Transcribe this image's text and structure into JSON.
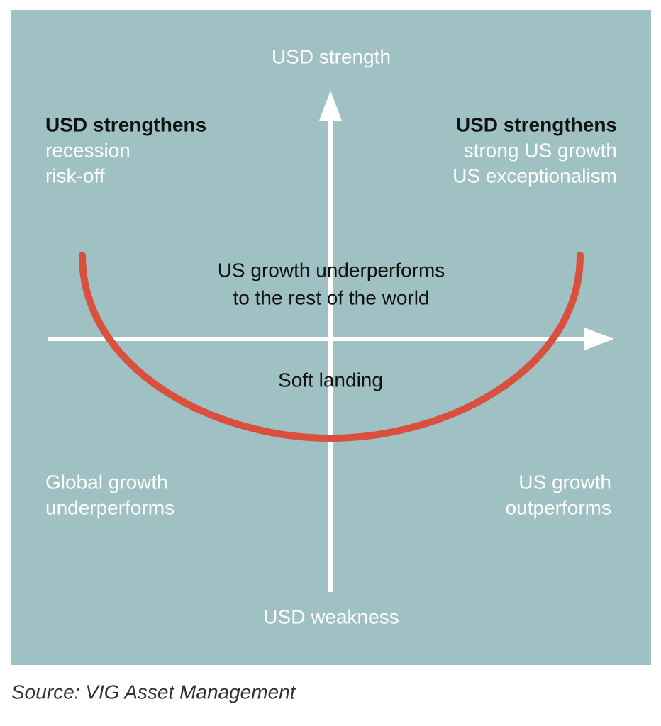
{
  "axes": {
    "top": "USD strength",
    "bottom": "USD weakness"
  },
  "quadrants": {
    "top_left": {
      "title": "USD strengthens",
      "lines": [
        "recession",
        "risk-off"
      ]
    },
    "top_right": {
      "title": "USD strengthens",
      "lines": [
        "strong US growth",
        "US exceptionalism"
      ]
    },
    "bottom_left": {
      "lines": [
        "Global growth",
        "underperforms"
      ]
    },
    "bottom_right": {
      "lines": [
        "US growth",
        "outperforms"
      ]
    }
  },
  "center": {
    "lines": [
      "US growth underperforms",
      "to the rest of the world"
    ]
  },
  "soft_landing": "Soft landing",
  "source": "Source: VIG Asset Management"
}
